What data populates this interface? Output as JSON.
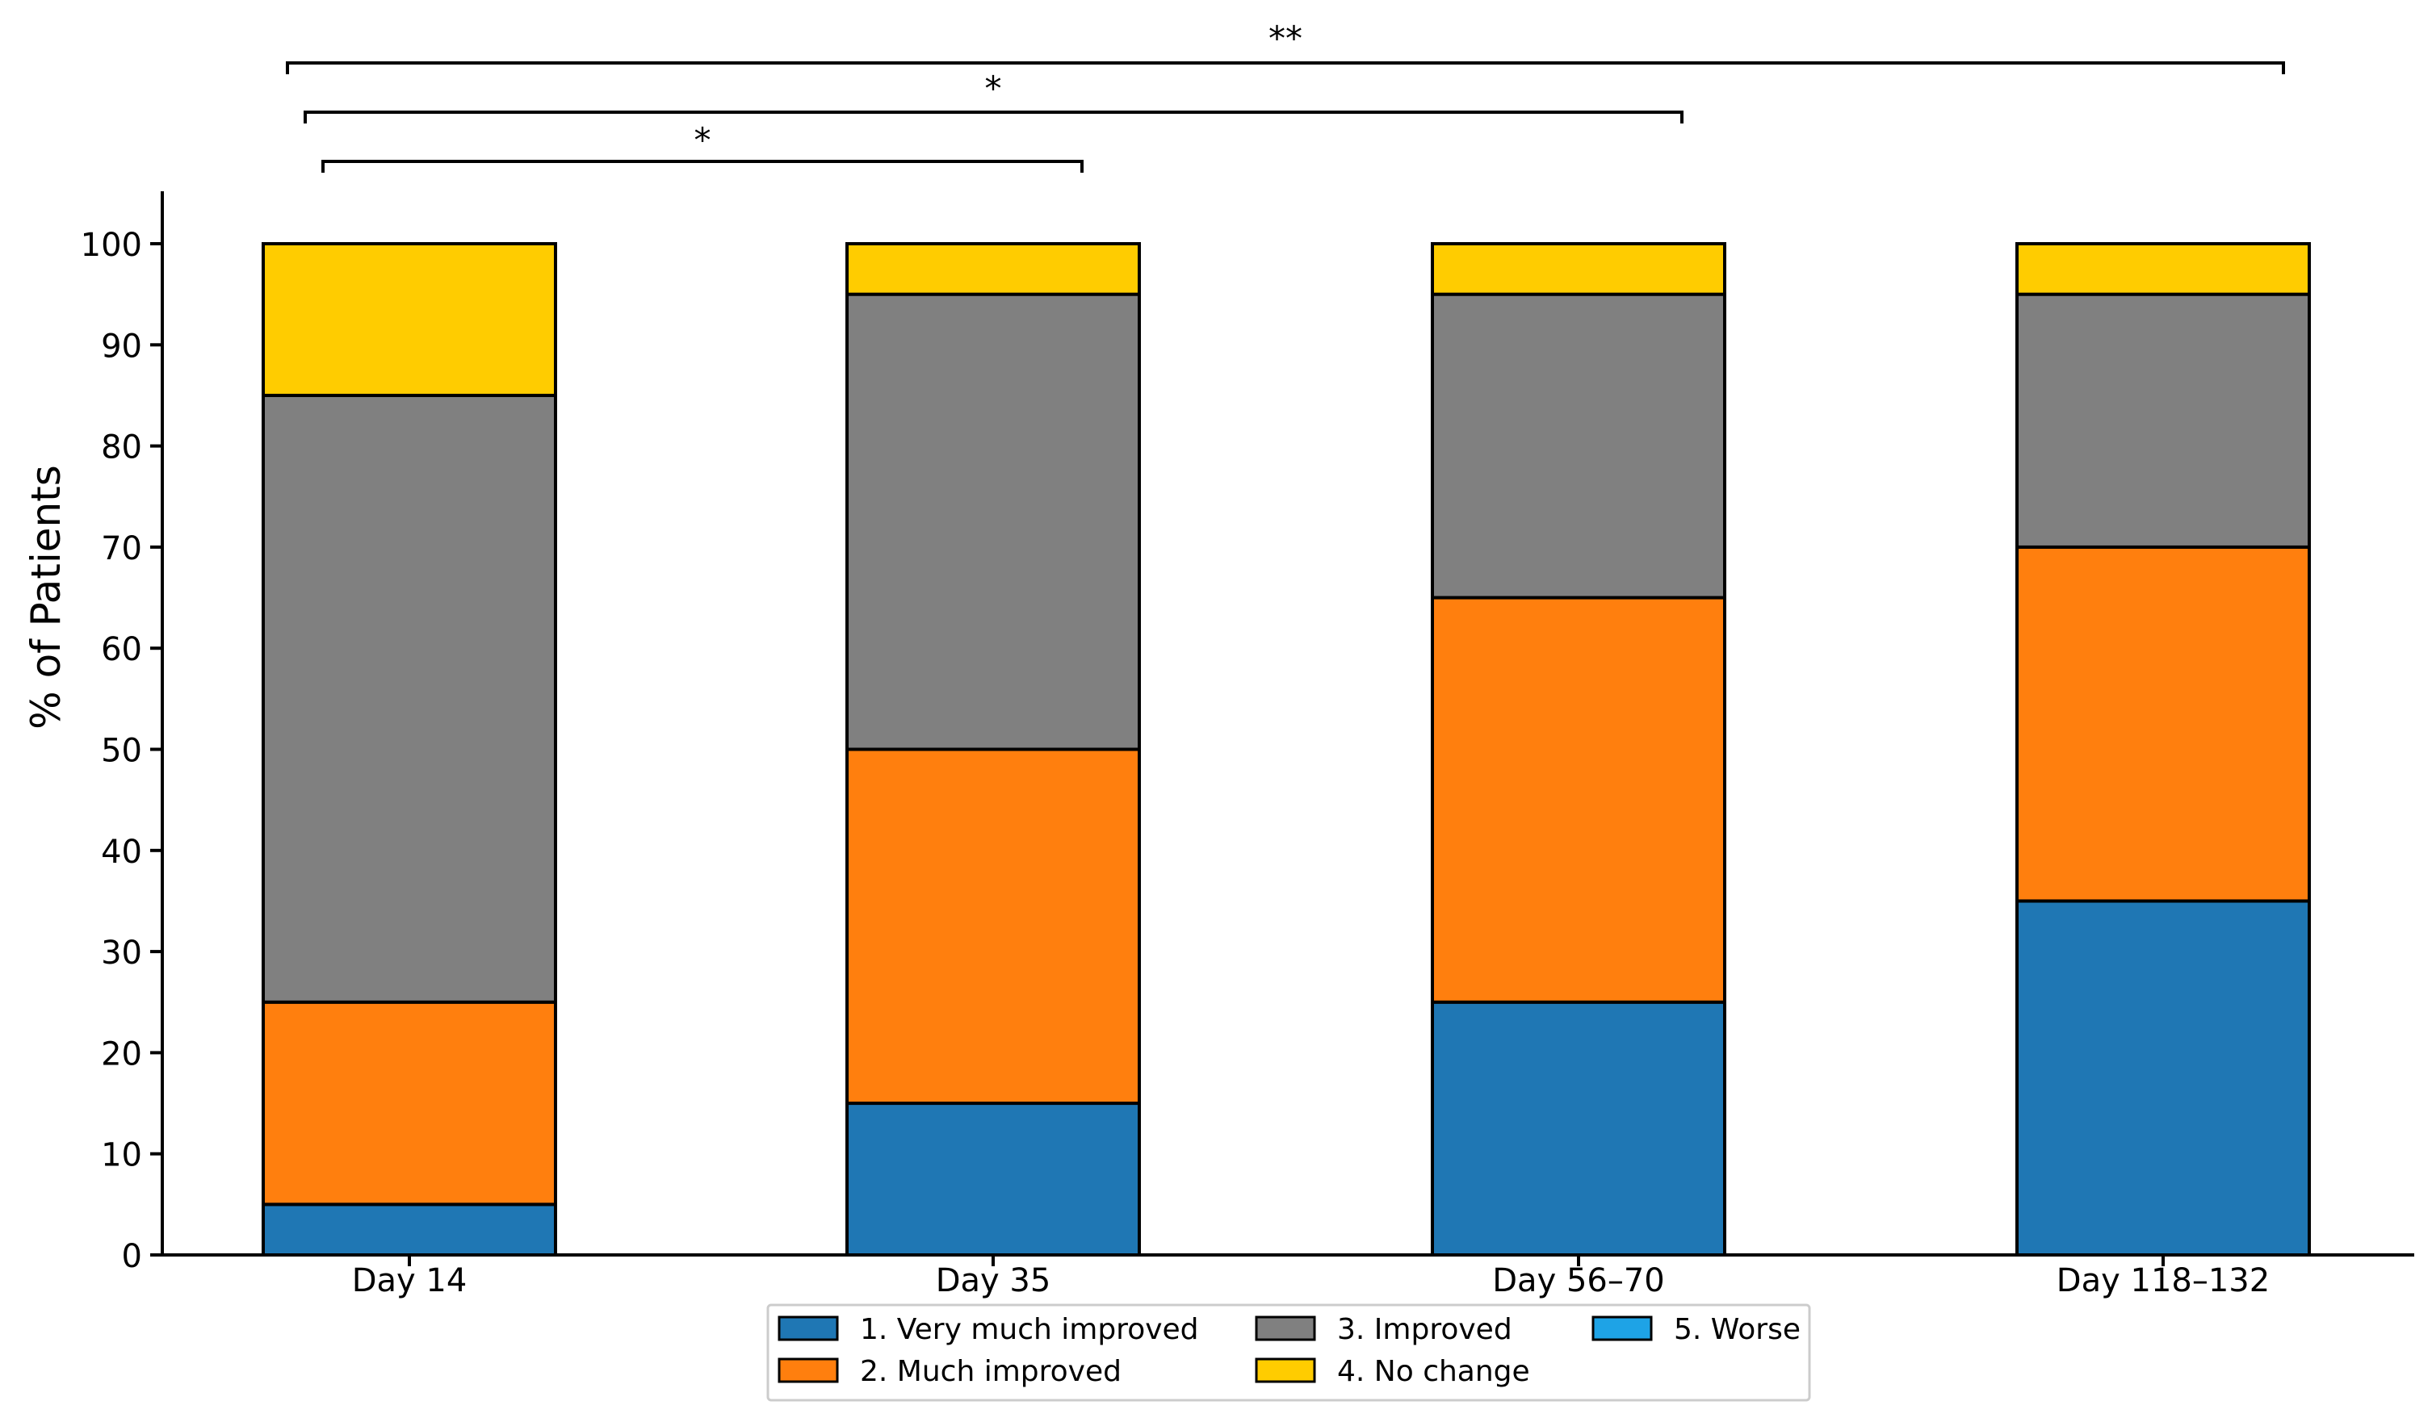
{
  "chart_data": {
    "type": "bar",
    "stacked": true,
    "title": "",
    "xlabel": "",
    "ylabel": "% of Patients",
    "ylim": [
      0,
      100
    ],
    "yticks": [
      0,
      10,
      20,
      30,
      40,
      50,
      60,
      70,
      80,
      90,
      100
    ],
    "categories": [
      "Day 14",
      "Day 35",
      "Day 56–70",
      "Day 118–132"
    ],
    "series": [
      {
        "name": "1. Very much improved",
        "color": "#1f77b4",
        "values": [
          5,
          15,
          25,
          35
        ]
      },
      {
        "name": "2. Much improved",
        "color": "#ff7f0e",
        "values": [
          20,
          35,
          40,
          35
        ]
      },
      {
        "name": "3. Improved",
        "color": "#808080",
        "values": [
          60,
          45,
          30,
          25
        ]
      },
      {
        "name": "4. No change",
        "color": "#ffcc00",
        "values": [
          15,
          5,
          5,
          5
        ]
      },
      {
        "name": "5. Worse",
        "color": "#1ea3e6",
        "values": [
          0,
          0,
          0,
          0
        ]
      }
    ],
    "legend": {
      "placement": "bottom-center",
      "columns": 3,
      "order": [
        "1. Very much improved",
        "2. Much improved",
        "3. Improved",
        "4. No change",
        "5. Worse"
      ]
    },
    "significance": [
      {
        "from": "Day 14",
        "to": "Day 35",
        "label": "*"
      },
      {
        "from": "Day 14",
        "to": "Day 56–70",
        "label": "*"
      },
      {
        "from": "Day 14",
        "to": "Day 118–132",
        "label": "**"
      }
    ]
  }
}
